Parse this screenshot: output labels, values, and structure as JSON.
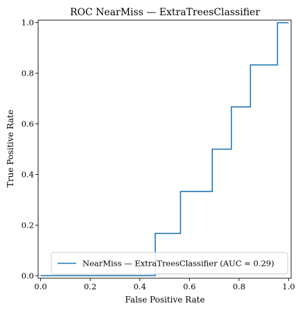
{
  "chart_data": {
    "type": "line",
    "title": "ROC NearMiss — ExtraTreesClassifier",
    "xlabel": "False Positive Rate",
    "ylabel": "True Positive Rate",
    "xlim": [
      -0.01,
      1.01
    ],
    "ylim": [
      -0.01,
      1.01
    ],
    "grid": false,
    "legend_position": "lower-right",
    "x_ticks": [
      0.0,
      0.2,
      0.4,
      0.6,
      0.8,
      1.0
    ],
    "x_tick_labels": [
      "0.0",
      "0.2",
      "0.4",
      "0.6",
      "0.8",
      "1.0"
    ],
    "y_ticks": [
      0.0,
      0.2,
      0.4,
      0.6,
      0.8,
      1.0
    ],
    "y_tick_labels": [
      "0.0",
      "0.2",
      "0.4",
      "0.6",
      "0.8",
      "1.0"
    ],
    "series": [
      {
        "name": "NearMiss — ExtraTreesClassifier (AUC = 0.29)",
        "color": "#1f77b4",
        "x": [
          0.0,
          0.0,
          0.462,
          0.462,
          0.564,
          0.564,
          0.692,
          0.692,
          0.769,
          0.769,
          0.846,
          0.846,
          0.955,
          0.955,
          1.0
        ],
        "y": [
          0.0,
          0.0,
          0.0,
          0.167,
          0.167,
          0.333,
          0.333,
          0.5,
          0.5,
          0.667,
          0.667,
          0.833,
          0.833,
          1.0,
          1.0
        ]
      }
    ]
  }
}
